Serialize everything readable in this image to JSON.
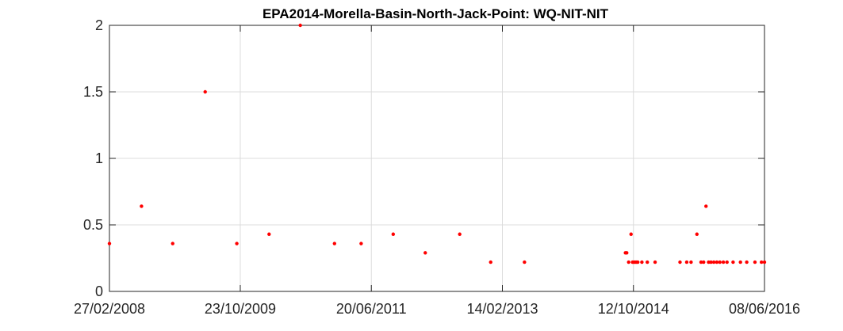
{
  "chart_data": {
    "type": "scatter",
    "title": "EPA2014-Morella-Basin-North-Jack-Point: WQ-NIT-NIT",
    "xlabel": "",
    "ylabel": "",
    "x_tick_labels": [
      "27/02/2008",
      "23/10/2009",
      "20/06/2011",
      "14/02/2013",
      "12/10/2014",
      "08/06/2016"
    ],
    "x_ticks": [
      "2008-02-27",
      "2009-10-23",
      "2011-06-20",
      "2013-02-14",
      "2014-10-12",
      "2016-06-08"
    ],
    "xlim": [
      "2008-02-27",
      "2016-06-08"
    ],
    "y_tick_labels": [
      "0",
      "0.5",
      "1",
      "1.5",
      "2"
    ],
    "y_ticks": [
      0,
      0.5,
      1,
      1.5,
      2
    ],
    "ylim": [
      0,
      2
    ],
    "grid": true,
    "marker_color": "#ff0000",
    "x": [
      "2008-02-27",
      "2008-07-24",
      "2008-12-15",
      "2009-05-14",
      "2009-10-07",
      "2010-03-05",
      "2010-07-27",
      "2011-01-01",
      "2011-05-04",
      "2011-09-29",
      "2012-02-24",
      "2012-08-01",
      "2012-12-22",
      "2013-05-27",
      "2014-09-05",
      "2014-09-11",
      "2014-09-20",
      "2014-10-01",
      "2014-10-08",
      "2014-10-14",
      "2014-10-20",
      "2014-10-26",
      "2014-11-01",
      "2014-11-20",
      "2014-12-15",
      "2015-01-20",
      "2015-05-15",
      "2015-06-15",
      "2015-07-05",
      "2015-08-01",
      "2015-08-20",
      "2015-09-01",
      "2015-09-12",
      "2015-09-24",
      "2015-10-05",
      "2015-10-18",
      "2015-11-01",
      "2015-11-15",
      "2015-12-01",
      "2015-12-18",
      "2016-01-15",
      "2016-02-18",
      "2016-03-18",
      "2016-04-25",
      "2016-05-25",
      "2016-06-08"
    ],
    "y": [
      0.36,
      0.64,
      0.36,
      1.5,
      0.36,
      0.43,
      2.0,
      0.36,
      0.36,
      0.43,
      0.29,
      0.43,
      0.22,
      0.22,
      0.29,
      0.29,
      0.22,
      0.43,
      0.22,
      0.22,
      0.22,
      0.22,
      0.22,
      0.22,
      0.22,
      0.22,
      0.22,
      0.22,
      0.22,
      0.43,
      0.22,
      0.22,
      0.64,
      0.22,
      0.22,
      0.22,
      0.22,
      0.22,
      0.22,
      0.22,
      0.22,
      0.22,
      0.22,
      0.22,
      0.22,
      0.22
    ]
  }
}
